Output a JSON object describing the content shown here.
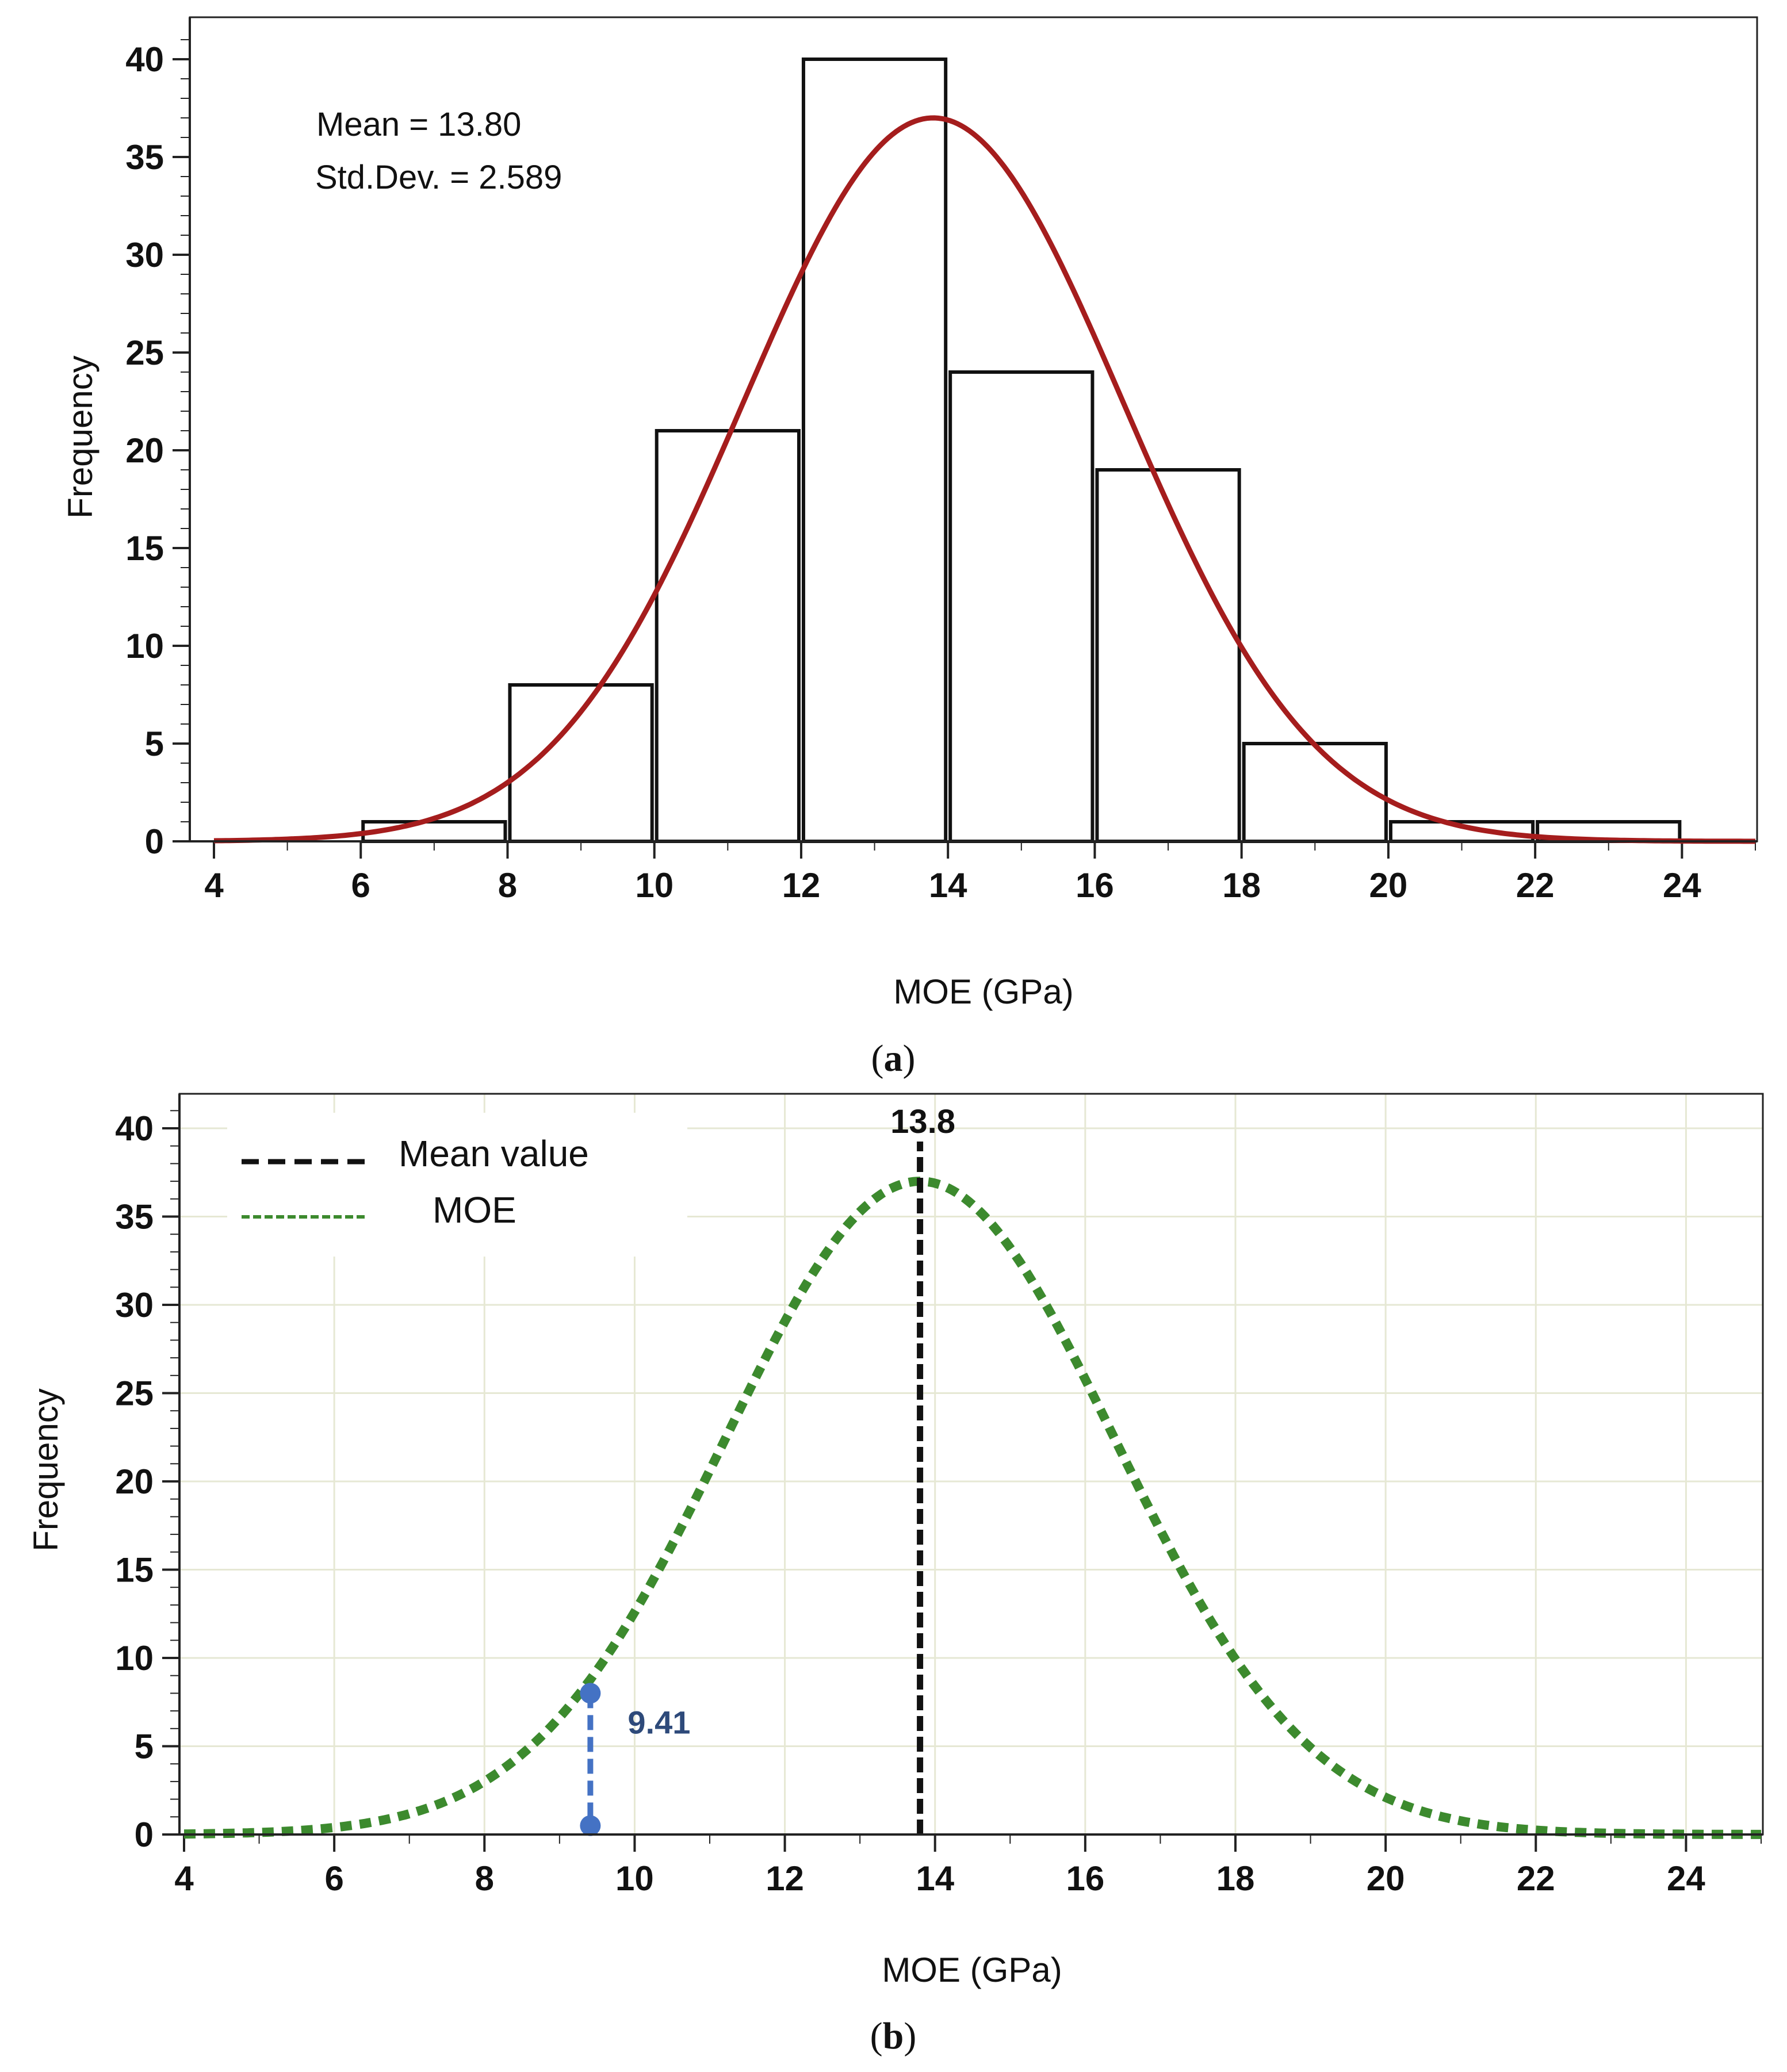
{
  "chart_data": [
    {
      "panel_label": "a",
      "type": "bar",
      "subtype": "histogram_with_normal_fit",
      "xlabel": "MOE (GPa)",
      "ylabel": "Frequency",
      "xlim": [
        4,
        25
      ],
      "ylim": [
        0,
        42
      ],
      "xticks": [
        "4",
        "6",
        "8",
        "10",
        "12",
        "14",
        "16",
        "18",
        "20",
        "22",
        "24"
      ],
      "yticks": [
        "0",
        "5",
        "10",
        "15",
        "20",
        "25",
        "30",
        "35",
        "40"
      ],
      "bins": [
        {
          "start": 6,
          "end": 8,
          "value": 1
        },
        {
          "start": 8,
          "end": 10,
          "value": 8
        },
        {
          "start": 10,
          "end": 12,
          "value": 21
        },
        {
          "start": 12,
          "end": 14,
          "value": 40
        },
        {
          "start": 14,
          "end": 16,
          "value": 24
        },
        {
          "start": 16,
          "end": 18,
          "value": 19
        },
        {
          "start": 18,
          "end": 20,
          "value": 5
        },
        {
          "start": 20,
          "end": 22,
          "value": 1
        },
        {
          "start": 22,
          "end": 24,
          "value": 1
        }
      ],
      "fit": {
        "mean": 13.8,
        "std": 2.589,
        "peak": 37,
        "color": "#A51D1D"
      },
      "annotations": [
        "Mean = 13.80",
        "Std.Dev. = 2.589"
      ],
      "grid": false
    },
    {
      "panel_label": "b",
      "type": "line",
      "xlabel": "MOE (GPa)",
      "ylabel": "Frequency",
      "xlim": [
        4,
        25
      ],
      "ylim": [
        0,
        42
      ],
      "xticks": [
        "4",
        "6",
        "8",
        "10",
        "12",
        "14",
        "16",
        "18",
        "20",
        "22",
        "24"
      ],
      "yticks": [
        "0",
        "5",
        "10",
        "15",
        "20",
        "25",
        "30",
        "35",
        "40"
      ],
      "series": [
        {
          "name": "MOE",
          "kind": "normal_curve",
          "mean": 13.8,
          "std": 2.589,
          "peak": 37,
          "color": "#3C8A2E",
          "style": "dotted"
        },
        {
          "name": "Mean value",
          "kind": "vertical_line",
          "x": 13.8,
          "color": "#111111",
          "style": "dashed"
        }
      ],
      "legend": {
        "position": "top-left",
        "entries": [
          "Mean value",
          "MOE"
        ]
      },
      "mean_label": "13.8",
      "callout": {
        "x": 9.41,
        "y_top": 8,
        "y_bottom": 0.5,
        "label": "9.41",
        "color": "#4472C4",
        "label_color": "#2E4A7A"
      },
      "grid": true
    }
  ],
  "captions": {
    "a": "a",
    "b": "b"
  }
}
